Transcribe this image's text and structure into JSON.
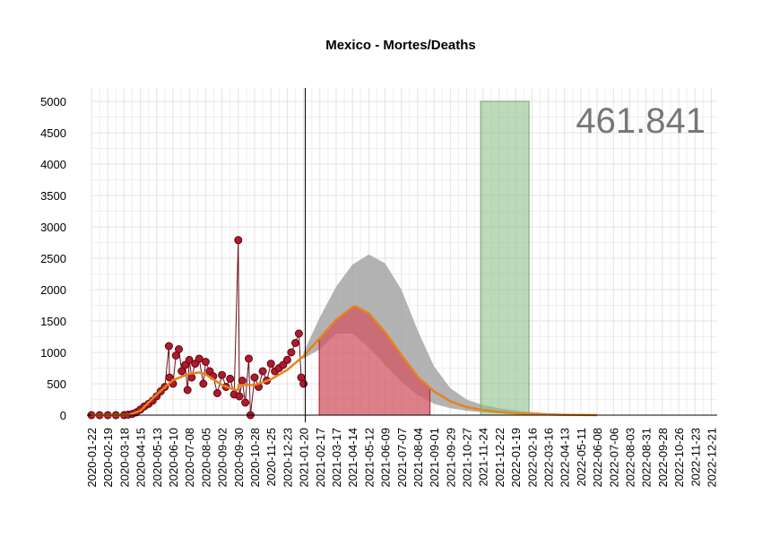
{
  "chart_data": {
    "type": "line",
    "title": "Mexico - Mortes/Deaths",
    "annotation": "461.841",
    "ylim": [
      0,
      5000
    ],
    "yticks": [
      0,
      500,
      1000,
      1500,
      2000,
      2500,
      3000,
      3500,
      4000,
      4500,
      5000
    ],
    "y_tick_labels": [
      "0",
      "500",
      "1000",
      "1500",
      "2000",
      "2500",
      "3000",
      "3500",
      "4000",
      "4500",
      "5000"
    ],
    "xlim": [
      "2020-01-22",
      "2022-12-31"
    ],
    "x_tick_labels": [
      "2020-01-22",
      "2020-02-19",
      "2020-03-18",
      "2020-04-15",
      "2020-05-13",
      "2020-06-10",
      "2020-07-08",
      "2020-08-05",
      "2020-09-02",
      "2020-09-30",
      "2020-10-28",
      "2020-11-25",
      "2020-12-23",
      "2021-01-20",
      "2021-02-17",
      "2021-03-17",
      "2021-04-14",
      "2021-05-12",
      "2021-06-09",
      "2021-07-07",
      "2021-08-04",
      "2021-09-01",
      "2021-09-29",
      "2021-10-27",
      "2021-11-24",
      "2021-12-22",
      "2022-01-19",
      "2022-02-16",
      "2022-03-16",
      "2022-04-13",
      "2022-05-11",
      "2022-06-08",
      "2022-07-06",
      "2022-08-03",
      "2022-08-31",
      "2022-09-28",
      "2022-10-26",
      "2022-11-23",
      "2022-12-21"
    ],
    "grid": true,
    "colors": {
      "observed": "#b2182b",
      "trend": "#e8821a",
      "band": "#a6a6a6",
      "shaded": "#d05563",
      "green_band": "#8fbf8b",
      "vline": "#000000"
    },
    "vertical_line_date": "2021-01-23",
    "green_band_range": [
      "2021-11-20",
      "2022-02-11"
    ],
    "shaded_range": [
      "2021-02-16",
      "2021-08-25"
    ],
    "observed_points": [
      [
        "2020-01-22",
        0
      ],
      [
        "2020-02-05",
        0
      ],
      [
        "2020-02-19",
        0
      ],
      [
        "2020-03-04",
        0
      ],
      [
        "2020-03-18",
        2
      ],
      [
        "2020-03-25",
        8
      ],
      [
        "2020-04-01",
        20
      ],
      [
        "2020-04-08",
        45
      ],
      [
        "2020-04-15",
        90
      ],
      [
        "2020-04-22",
        140
      ],
      [
        "2020-04-29",
        180
      ],
      [
        "2020-05-06",
        230
      ],
      [
        "2020-05-13",
        300
      ],
      [
        "2020-05-20",
        380
      ],
      [
        "2020-05-27",
        450
      ],
      [
        "2020-06-03",
        1100
      ],
      [
        "2020-06-04",
        600
      ],
      [
        "2020-06-10",
        500
      ],
      [
        "2020-06-15",
        950
      ],
      [
        "2020-06-20",
        1050
      ],
      [
        "2020-06-25",
        700
      ],
      [
        "2020-07-01",
        800
      ],
      [
        "2020-07-05",
        400
      ],
      [
        "2020-07-08",
        880
      ],
      [
        "2020-07-12",
        600
      ],
      [
        "2020-07-18",
        820
      ],
      [
        "2020-07-25",
        900
      ],
      [
        "2020-08-01",
        500
      ],
      [
        "2020-08-05",
        850
      ],
      [
        "2020-08-12",
        700
      ],
      [
        "2020-08-18",
        620
      ],
      [
        "2020-08-25",
        350
      ],
      [
        "2020-09-02",
        640
      ],
      [
        "2020-09-09",
        450
      ],
      [
        "2020-09-16",
        580
      ],
      [
        "2020-09-23",
        330
      ],
      [
        "2020-09-30",
        2789
      ],
      [
        "2020-10-02",
        300
      ],
      [
        "2020-10-07",
        550
      ],
      [
        "2020-10-12",
        200
      ],
      [
        "2020-10-18",
        900
      ],
      [
        "2020-10-21",
        0
      ],
      [
        "2020-10-28",
        600
      ],
      [
        "2020-11-04",
        450
      ],
      [
        "2020-11-11",
        700
      ],
      [
        "2020-11-18",
        550
      ],
      [
        "2020-11-25",
        820
      ],
      [
        "2020-12-02",
        700
      ],
      [
        "2020-12-09",
        750
      ],
      [
        "2020-12-16",
        800
      ],
      [
        "2020-12-23",
        880
      ],
      [
        "2020-12-30",
        1000
      ],
      [
        "2021-01-06",
        1150
      ],
      [
        "2021-01-12",
        1300
      ],
      [
        "2021-01-16",
        600
      ],
      [
        "2021-01-20",
        500
      ]
    ],
    "trend_points": [
      [
        "2020-01-22",
        0
      ],
      [
        "2020-03-25",
        0
      ],
      [
        "2020-04-15",
        70
      ],
      [
        "2020-05-13",
        330
      ],
      [
        "2020-06-10",
        560
      ],
      [
        "2020-07-08",
        660
      ],
      [
        "2020-07-25",
        680
      ],
      [
        "2020-08-05",
        650
      ],
      [
        "2020-09-02",
        480
      ],
      [
        "2020-09-25",
        400
      ],
      [
        "2020-09-30",
        410
      ],
      [
        "2020-10-01",
        480
      ],
      [
        "2020-10-28",
        480
      ],
      [
        "2020-11-25",
        570
      ],
      [
        "2020-12-23",
        720
      ],
      [
        "2021-01-20",
        940
      ],
      [
        "2021-02-17",
        1230
      ],
      [
        "2021-03-17",
        1520
      ],
      [
        "2021-04-14",
        1720
      ],
      [
        "2021-04-20",
        1730
      ],
      [
        "2021-05-12",
        1620
      ],
      [
        "2021-06-09",
        1320
      ],
      [
        "2021-07-07",
        960
      ],
      [
        "2021-08-04",
        610
      ],
      [
        "2021-09-01",
        380
      ],
      [
        "2021-09-29",
        220
      ],
      [
        "2021-10-27",
        130
      ],
      [
        "2021-11-24",
        80
      ],
      [
        "2021-12-22",
        50
      ],
      [
        "2022-01-19",
        30
      ],
      [
        "2022-02-16",
        20
      ],
      [
        "2022-03-16",
        12
      ],
      [
        "2022-04-13",
        6
      ],
      [
        "2022-05-11",
        3
      ],
      [
        "2022-06-08",
        0
      ]
    ],
    "band_upper_points": [
      [
        "2021-01-20",
        1000
      ],
      [
        "2021-02-17",
        1560
      ],
      [
        "2021-03-17",
        2050
      ],
      [
        "2021-04-14",
        2400
      ],
      [
        "2021-05-12",
        2560
      ],
      [
        "2021-06-09",
        2420
      ],
      [
        "2021-07-07",
        2000
      ],
      [
        "2021-08-04",
        1350
      ],
      [
        "2021-09-01",
        780
      ],
      [
        "2021-09-29",
        430
      ],
      [
        "2021-10-27",
        250
      ],
      [
        "2021-11-24",
        160
      ],
      [
        "2021-12-22",
        110
      ],
      [
        "2022-01-19",
        75
      ],
      [
        "2022-02-16",
        50
      ],
      [
        "2022-03-16",
        30
      ],
      [
        "2022-04-13",
        18
      ],
      [
        "2022-05-11",
        8
      ],
      [
        "2022-06-08",
        0
      ]
    ],
    "band_lower_points": [
      [
        "2021-01-20",
        900
      ],
      [
        "2021-02-17",
        1050
      ],
      [
        "2021-03-17",
        1300
      ],
      [
        "2021-04-14",
        1300
      ],
      [
        "2021-05-12",
        1080
      ],
      [
        "2021-06-09",
        800
      ],
      [
        "2021-07-07",
        530
      ],
      [
        "2021-08-04",
        320
      ],
      [
        "2021-09-01",
        180
      ],
      [
        "2021-09-29",
        110
      ],
      [
        "2021-10-27",
        70
      ],
      [
        "2021-11-24",
        45
      ],
      [
        "2021-12-22",
        30
      ],
      [
        "2022-01-19",
        20
      ],
      [
        "2022-02-16",
        12
      ],
      [
        "2022-03-16",
        6
      ],
      [
        "2022-04-13",
        3
      ],
      [
        "2022-05-11",
        0
      ]
    ]
  }
}
